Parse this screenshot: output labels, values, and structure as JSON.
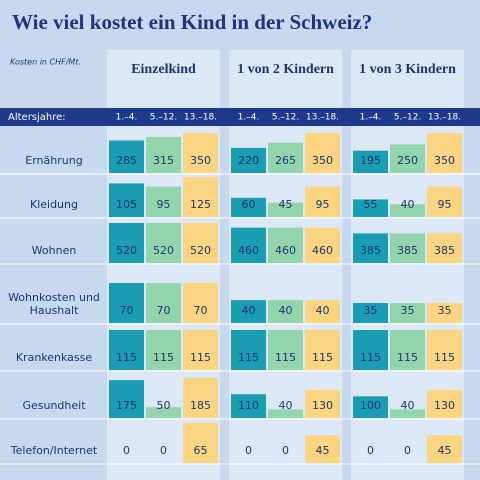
{
  "chart_data": {
    "type": "bar",
    "title": "Wie viel kostet ein Kind in der Schweiz?",
    "subtitle": "Kosten in CHF/Mt.",
    "groups": [
      "Einzelkind",
      "1 von 2 Kindern",
      "1 von 3 Kindern"
    ],
    "age_label": "Altersjahre:",
    "ages": [
      "1.–4.",
      "5.–12.",
      "13.–18."
    ],
    "colors": [
      "#1a9cb3",
      "#92d5ac",
      "#fbd581"
    ],
    "rows": [
      {
        "label": "Ernährung",
        "ylim": [
          0,
          350
        ],
        "values": [
          [
            285,
            315,
            350
          ],
          [
            220,
            265,
            350
          ],
          [
            195,
            250,
            350
          ]
        ]
      },
      {
        "label": "Kleidung",
        "ylim": [
          0,
          125
        ],
        "values": [
          [
            105,
            95,
            125
          ],
          [
            60,
            45,
            95
          ],
          [
            55,
            40,
            95
          ]
        ]
      },
      {
        "label": "Wohnen",
        "ylim": [
          0,
          520
        ],
        "values": [
          [
            520,
            520,
            520
          ],
          [
            460,
            460,
            460
          ],
          [
            385,
            385,
            385
          ]
        ]
      },
      {
        "label": "Wohnkosten und Haushalt",
        "ylim": [
          0,
          70
        ],
        "values": [
          [
            70,
            70,
            70
          ],
          [
            40,
            40,
            40
          ],
          [
            35,
            35,
            35
          ]
        ]
      },
      {
        "label": "Krankenkasse",
        "ylim": [
          0,
          115
        ],
        "values": [
          [
            115,
            115,
            115
          ],
          [
            115,
            115,
            115
          ],
          [
            115,
            115,
            115
          ]
        ]
      },
      {
        "label": "Gesundheit",
        "ylim": [
          0,
          185
        ],
        "values": [
          [
            175,
            50,
            185
          ],
          [
            110,
            40,
            130
          ],
          [
            100,
            40,
            130
          ]
        ]
      },
      {
        "label": "Telefon/Internet",
        "ylim": [
          0,
          65
        ],
        "values": [
          [
            0,
            0,
            65
          ],
          [
            0,
            0,
            45
          ],
          [
            0,
            0,
            45
          ]
        ]
      }
    ]
  }
}
